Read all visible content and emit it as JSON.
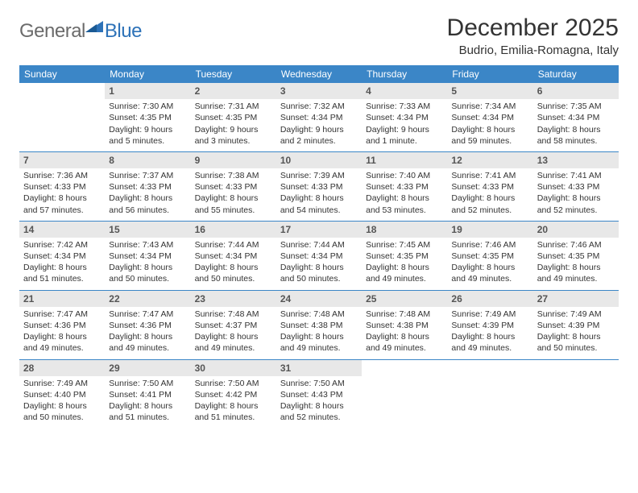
{
  "logo": {
    "text1": "General",
    "text2": "Blue"
  },
  "title": "December 2025",
  "location": "Budrio, Emilia-Romagna, Italy",
  "colors": {
    "header_bg": "#3b86c7",
    "header_text": "#ffffff",
    "daynum_bg": "#e8e8e8",
    "daynum_text": "#555555",
    "body_text": "#333333",
    "logo_gray": "#6b6b6b",
    "logo_blue": "#2d72b8",
    "divider": "#3b86c7"
  },
  "day_names": [
    "Sunday",
    "Monday",
    "Tuesday",
    "Wednesday",
    "Thursday",
    "Friday",
    "Saturday"
  ],
  "weeks": [
    [
      {
        "n": "",
        "sr": "",
        "ss": "",
        "dl": ""
      },
      {
        "n": "1",
        "sr": "Sunrise: 7:30 AM",
        "ss": "Sunset: 4:35 PM",
        "dl": "Daylight: 9 hours and 5 minutes."
      },
      {
        "n": "2",
        "sr": "Sunrise: 7:31 AM",
        "ss": "Sunset: 4:35 PM",
        "dl": "Daylight: 9 hours and 3 minutes."
      },
      {
        "n": "3",
        "sr": "Sunrise: 7:32 AM",
        "ss": "Sunset: 4:34 PM",
        "dl": "Daylight: 9 hours and 2 minutes."
      },
      {
        "n": "4",
        "sr": "Sunrise: 7:33 AM",
        "ss": "Sunset: 4:34 PM",
        "dl": "Daylight: 9 hours and 1 minute."
      },
      {
        "n": "5",
        "sr": "Sunrise: 7:34 AM",
        "ss": "Sunset: 4:34 PM",
        "dl": "Daylight: 8 hours and 59 minutes."
      },
      {
        "n": "6",
        "sr": "Sunrise: 7:35 AM",
        "ss": "Sunset: 4:34 PM",
        "dl": "Daylight: 8 hours and 58 minutes."
      }
    ],
    [
      {
        "n": "7",
        "sr": "Sunrise: 7:36 AM",
        "ss": "Sunset: 4:33 PM",
        "dl": "Daylight: 8 hours and 57 minutes."
      },
      {
        "n": "8",
        "sr": "Sunrise: 7:37 AM",
        "ss": "Sunset: 4:33 PM",
        "dl": "Daylight: 8 hours and 56 minutes."
      },
      {
        "n": "9",
        "sr": "Sunrise: 7:38 AM",
        "ss": "Sunset: 4:33 PM",
        "dl": "Daylight: 8 hours and 55 minutes."
      },
      {
        "n": "10",
        "sr": "Sunrise: 7:39 AM",
        "ss": "Sunset: 4:33 PM",
        "dl": "Daylight: 8 hours and 54 minutes."
      },
      {
        "n": "11",
        "sr": "Sunrise: 7:40 AM",
        "ss": "Sunset: 4:33 PM",
        "dl": "Daylight: 8 hours and 53 minutes."
      },
      {
        "n": "12",
        "sr": "Sunrise: 7:41 AM",
        "ss": "Sunset: 4:33 PM",
        "dl": "Daylight: 8 hours and 52 minutes."
      },
      {
        "n": "13",
        "sr": "Sunrise: 7:41 AM",
        "ss": "Sunset: 4:33 PM",
        "dl": "Daylight: 8 hours and 52 minutes."
      }
    ],
    [
      {
        "n": "14",
        "sr": "Sunrise: 7:42 AM",
        "ss": "Sunset: 4:34 PM",
        "dl": "Daylight: 8 hours and 51 minutes."
      },
      {
        "n": "15",
        "sr": "Sunrise: 7:43 AM",
        "ss": "Sunset: 4:34 PM",
        "dl": "Daylight: 8 hours and 50 minutes."
      },
      {
        "n": "16",
        "sr": "Sunrise: 7:44 AM",
        "ss": "Sunset: 4:34 PM",
        "dl": "Daylight: 8 hours and 50 minutes."
      },
      {
        "n": "17",
        "sr": "Sunrise: 7:44 AM",
        "ss": "Sunset: 4:34 PM",
        "dl": "Daylight: 8 hours and 50 minutes."
      },
      {
        "n": "18",
        "sr": "Sunrise: 7:45 AM",
        "ss": "Sunset: 4:35 PM",
        "dl": "Daylight: 8 hours and 49 minutes."
      },
      {
        "n": "19",
        "sr": "Sunrise: 7:46 AM",
        "ss": "Sunset: 4:35 PM",
        "dl": "Daylight: 8 hours and 49 minutes."
      },
      {
        "n": "20",
        "sr": "Sunrise: 7:46 AM",
        "ss": "Sunset: 4:35 PM",
        "dl": "Daylight: 8 hours and 49 minutes."
      }
    ],
    [
      {
        "n": "21",
        "sr": "Sunrise: 7:47 AM",
        "ss": "Sunset: 4:36 PM",
        "dl": "Daylight: 8 hours and 49 minutes."
      },
      {
        "n": "22",
        "sr": "Sunrise: 7:47 AM",
        "ss": "Sunset: 4:36 PM",
        "dl": "Daylight: 8 hours and 49 minutes."
      },
      {
        "n": "23",
        "sr": "Sunrise: 7:48 AM",
        "ss": "Sunset: 4:37 PM",
        "dl": "Daylight: 8 hours and 49 minutes."
      },
      {
        "n": "24",
        "sr": "Sunrise: 7:48 AM",
        "ss": "Sunset: 4:38 PM",
        "dl": "Daylight: 8 hours and 49 minutes."
      },
      {
        "n": "25",
        "sr": "Sunrise: 7:48 AM",
        "ss": "Sunset: 4:38 PM",
        "dl": "Daylight: 8 hours and 49 minutes."
      },
      {
        "n": "26",
        "sr": "Sunrise: 7:49 AM",
        "ss": "Sunset: 4:39 PM",
        "dl": "Daylight: 8 hours and 49 minutes."
      },
      {
        "n": "27",
        "sr": "Sunrise: 7:49 AM",
        "ss": "Sunset: 4:39 PM",
        "dl": "Daylight: 8 hours and 50 minutes."
      }
    ],
    [
      {
        "n": "28",
        "sr": "Sunrise: 7:49 AM",
        "ss": "Sunset: 4:40 PM",
        "dl": "Daylight: 8 hours and 50 minutes."
      },
      {
        "n": "29",
        "sr": "Sunrise: 7:50 AM",
        "ss": "Sunset: 4:41 PM",
        "dl": "Daylight: 8 hours and 51 minutes."
      },
      {
        "n": "30",
        "sr": "Sunrise: 7:50 AM",
        "ss": "Sunset: 4:42 PM",
        "dl": "Daylight: 8 hours and 51 minutes."
      },
      {
        "n": "31",
        "sr": "Sunrise: 7:50 AM",
        "ss": "Sunset: 4:43 PM",
        "dl": "Daylight: 8 hours and 52 minutes."
      },
      {
        "n": "",
        "sr": "",
        "ss": "",
        "dl": ""
      },
      {
        "n": "",
        "sr": "",
        "ss": "",
        "dl": ""
      },
      {
        "n": "",
        "sr": "",
        "ss": "",
        "dl": ""
      }
    ]
  ]
}
